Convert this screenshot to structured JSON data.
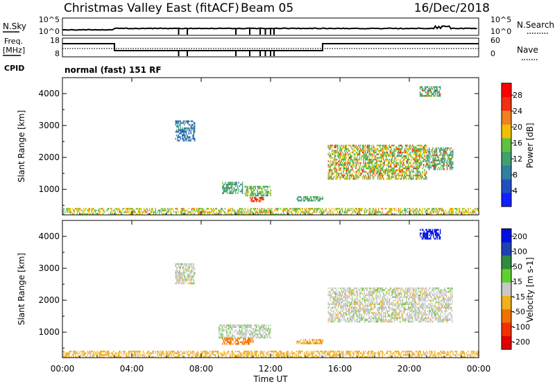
{
  "header": {
    "title": "Christmas Valley East (fitACF)",
    "beam": "Beam 05",
    "date": "16/Dec/2018"
  },
  "param_panel": {
    "nsky_label": "N.Sky",
    "nsearch_label": "N.Search",
    "freq_label": "Freq.",
    "freq_unit": "[MHz]",
    "nave_label": "Nave",
    "cpid_label": "CPID",
    "cpid_text": "normal (fast) 151 RF",
    "noise_ticks": [
      "10^5",
      "10^0"
    ],
    "freq_ticks": [
      "18",
      "8"
    ],
    "nave_ticks": [
      "60",
      "0"
    ]
  },
  "chart_data": [
    {
      "type": "heatmap",
      "name": "power",
      "ylabel": "Slant Range [km]",
      "xlabel": "",
      "xlim": [
        0,
        24
      ],
      "ylim": [
        200,
        4500
      ],
      "xticks": [
        "00:00",
        "04:00",
        "08:00",
        "12:00",
        "16:00",
        "20:00",
        "00:00"
      ],
      "yticks": [
        1000,
        2000,
        3000,
        4000
      ],
      "colorbar": {
        "label": "Power [dB]",
        "ticks": [
          4,
          8,
          12,
          16,
          20,
          24,
          28
        ],
        "range": [
          0,
          31
        ]
      },
      "regions": [
        {
          "t": [
            6.5,
            7.6
          ],
          "r": [
            2500,
            3150
          ],
          "v": 7
        },
        {
          "t": [
            9.2,
            10.4
          ],
          "r": [
            850,
            1200
          ],
          "v": 11
        },
        {
          "t": [
            10.5,
            12.0
          ],
          "r": [
            780,
            1100
          ],
          "v": 14
        },
        {
          "t": [
            10.8,
            11.6
          ],
          "r": [
            600,
            760
          ],
          "v": 27
        },
        {
          "t": [
            13.5,
            15.0
          ],
          "r": [
            620,
            780
          ],
          "v": 12
        },
        {
          "t": [
            15.3,
            21.0
          ],
          "r": [
            1300,
            2400
          ],
          "v": 16
        },
        {
          "t": [
            21.0,
            22.5
          ],
          "r": [
            1600,
            2300
          ],
          "v": 13
        },
        {
          "t": [
            20.6,
            21.8
          ],
          "r": [
            3900,
            4200
          ],
          "v": 13
        },
        {
          "t": [
            0.0,
            24.0
          ],
          "r": [
            200,
            420
          ],
          "v": 18
        }
      ]
    },
    {
      "type": "heatmap",
      "name": "velocity",
      "ylabel": "Slant Range [km]",
      "xlabel": "Time UT",
      "xlim": [
        0,
        24
      ],
      "ylim": [
        200,
        4500
      ],
      "xticks": [
        "00:00",
        "04:00",
        "08:00",
        "12:00",
        "16:00",
        "20:00",
        "00:00"
      ],
      "yticks": [
        1000,
        2000,
        3000,
        4000
      ],
      "colorbar": {
        "label": "Velocity [m s-1]",
        "ticks": [
          200,
          100,
          50,
          15,
          -15,
          -50,
          -100,
          -200
        ]
      },
      "regions": [
        {
          "t": [
            6.5,
            7.6
          ],
          "r": [
            2500,
            3150
          ],
          "v": 0
        },
        {
          "t": [
            9.0,
            12.0
          ],
          "r": [
            800,
            1200
          ],
          "v": 5
        },
        {
          "t": [
            9.2,
            11.0
          ],
          "r": [
            600,
            800
          ],
          "v": -60
        },
        {
          "t": [
            13.5,
            15.0
          ],
          "r": [
            620,
            780
          ],
          "v": -40
        },
        {
          "t": [
            15.3,
            22.5
          ],
          "r": [
            1300,
            2400
          ],
          "v": 0
        },
        {
          "t": [
            20.6,
            21.8
          ],
          "r": [
            3900,
            4200
          ],
          "v": 220
        },
        {
          "t": [
            0.0,
            24.0
          ],
          "r": [
            200,
            420
          ],
          "v": -30
        }
      ]
    }
  ]
}
